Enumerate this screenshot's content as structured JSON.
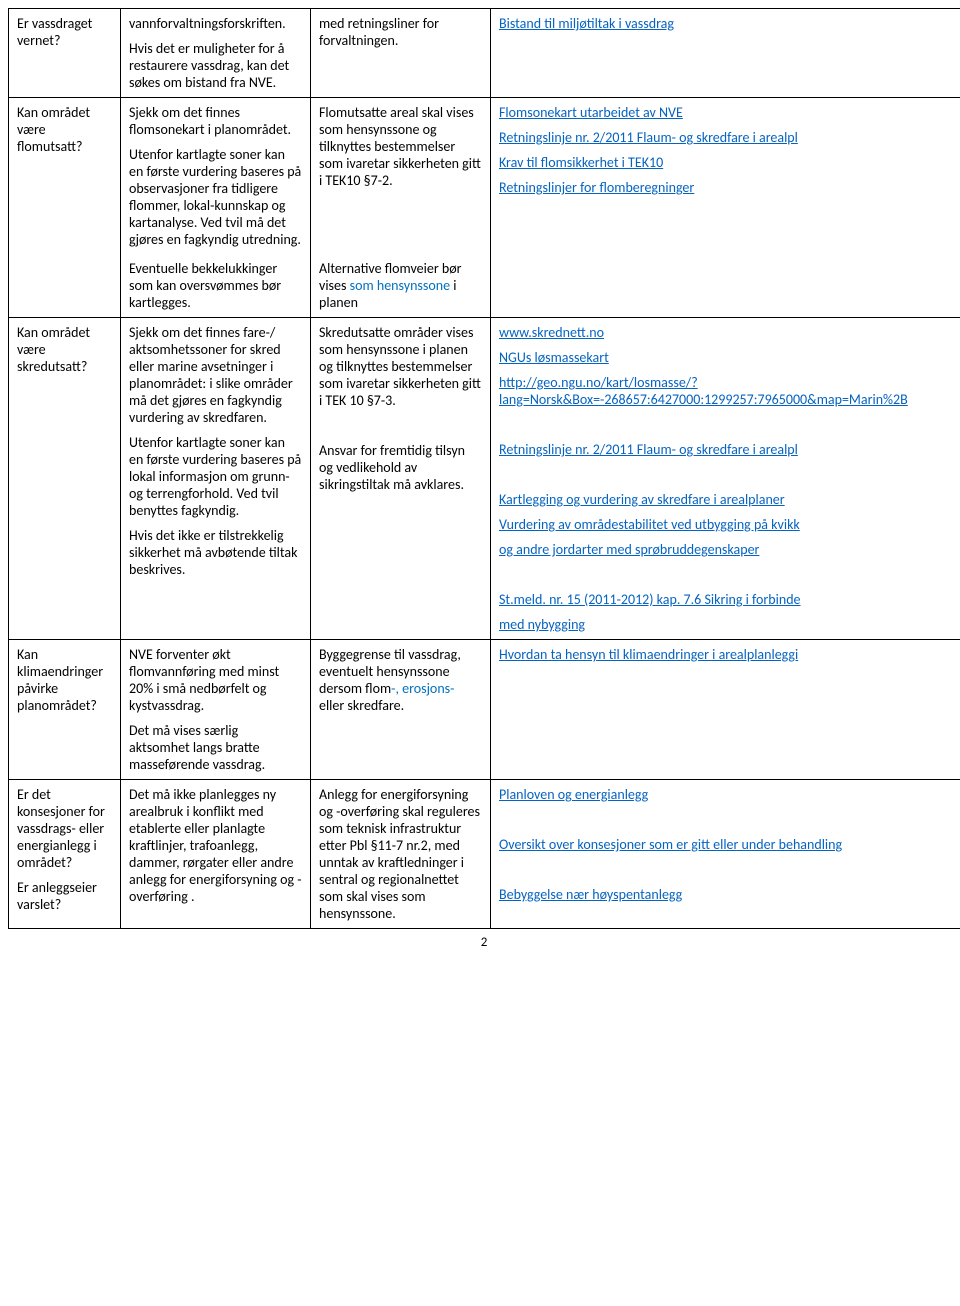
{
  "rows": [
    {
      "col1": [
        {
          "t": "Er vassdraget vernet?"
        }
      ],
      "col2": [
        {
          "t": "vannforvaltningsforskriften."
        },
        {
          "t": "Hvis det er muligheter for å  restaurere vassdrag, kan det søkes om bistand fra NVE."
        }
      ],
      "col3": [
        {
          "t": "med retningsliner for forvaltningen."
        }
      ],
      "col4": [
        {
          "link": "Bistand til miljøtiltak i vassdrag"
        }
      ]
    },
    {
      "col1": [
        {
          "t": "Kan området være flomutsatt?"
        }
      ],
      "col2": [
        {
          "t": "Sjekk om det finnes  flomsonekart i planområdet."
        },
        {
          "t": "Utenfor kartlagte soner kan  en første vurdering baseres på observasjoner fra tidligere flommer, lokal-kunnskap og kartanalyse. Ved tvil må det gjøres en fagkyndig utredning."
        }
      ],
      "col3": [
        {
          "t": "Flomutsatte areal skal vises som hensynssone og tilknyttes bestemmelser som ivaretar sikkerheten gitt i TEK10 §7-2."
        }
      ],
      "col4": [
        {
          "link": "Flomsonekart utarbeidet av NVE"
        },
        {
          "link": "Retningslinje nr. 2/2011 Flaum- og skredfare i arealpl"
        },
        {
          "link": "Krav til flomsikkerhet i TEK10"
        },
        {
          "link": "Retningslinjer for flomberegninger"
        }
      ]
    },
    {
      "col1": [],
      "col2": [
        {
          "t": "Eventuelle bekkelukkinger som kan oversvømmes bør kartlegges."
        }
      ],
      "col3": [
        {
          "html": "Alternative flomveier bør vises <span class='blue-text'>som hensynssone</span> i planen"
        }
      ],
      "col4": []
    },
    {
      "col1": [
        {
          "t": "Kan området være skredutsatt?"
        }
      ],
      "col2": [
        {
          "t": "Sjekk om det finnes fare-/ aktsomhetssoner for skred eller marine avsetninger i planområdet: i slike områder må det gjøres en fagkyndig vurdering av skredfaren."
        },
        {
          "t": "Utenfor kartlagte soner kan en første vurdering baseres på lokal informasjon om grunn- og terrengforhold. Ved tvil benyttes fagkyndig."
        },
        {
          "t": "Hvis det ikke er tilstrekkelig sikkerhet må avbøtende tiltak beskrives."
        }
      ],
      "col3": [
        {
          "t": "Skredutsatte områder vises som hensynssone i planen og tilknyttes bestemmelser som ivaretar sikkerheten gitt i TEK 10 §7-3."
        },
        {
          "t": ""
        },
        {
          "t": "Ansvar for fremtidig tilsyn og vedlikehold av sikringstiltak må avklares."
        }
      ],
      "col4": [
        {
          "link": "www.skrednett.no"
        },
        {
          "link": "NGUs løsmassekart"
        },
        {
          "link": "http://geo.ngu.no/kart/losmasse/?lang=Norsk&Box=-268657:6427000:1299257:7965000&map=Marin%2B"
        },
        {
          "t": ""
        },
        {
          "link": "Retningslinje nr. 2/2011 Flaum- og skredfare i arealpl"
        },
        {
          "t": ""
        },
        {
          "link": "Kartlegging og vurdering av skredfare i arealplaner"
        },
        {
          "link": "Vurdering av områdestabilitet ved utbygging på kvikk"
        },
        {
          "link": "og andre jordarter med sprøbruddegenskaper"
        },
        {
          "t": ""
        },
        {
          "link": "St.meld. nr. 15 (2011-2012) kap. 7.6 Sikring i forbinde"
        },
        {
          "link": "med nybygging"
        }
      ]
    },
    {
      "col1": [
        {
          "t": "Kan klimaendringer påvirke planområdet?"
        }
      ],
      "col2": [
        {
          "t": "NVE forventer økt flomvannføring med minst 20% i små nedbørfelt og kystvassdrag."
        },
        {
          "t": "Det må vises særlig aktsomhet langs bratte masseførende vassdrag."
        }
      ],
      "col3": [
        {
          "html": "Byggegrense til vassdrag, eventuelt  hensynssone dersom flom<span class='blue-text'>-, erosjons-</span> eller skredfare."
        }
      ],
      "col4": [
        {
          "link": "Hvordan ta hensyn til klimaendringer i arealplanleggi"
        }
      ]
    },
    {
      "col1": [
        {
          "t": "Er det konsesjoner for vassdrags- eller energianlegg i området?"
        },
        {
          "t": "Er anleggseier varslet?"
        }
      ],
      "col2": [
        {
          "t": "Det må ikke planlegges ny arealbruk i konflikt med etablerte eller planlagte kraftlinjer, trafoanlegg, dammer, rørgater eller andre anlegg for energiforsyning og -overføring ."
        }
      ],
      "col3": [
        {
          "t": "Anlegg for energiforsyning og -overføring skal reguleres som teknisk infrastruktur etter Pbl §11-7 nr.2, med unntak av kraftledninger i sentral og regionalnettet som skal vises som hensynssone."
        }
      ],
      "col4": [
        {
          "link": "Planloven og energianlegg"
        },
        {
          "t": ""
        },
        {
          "link": "Oversikt over konsesjoner som er gitt eller under behandling"
        },
        {
          "t": ""
        },
        {
          "link": "Bebyggelse nær høyspentanlegg"
        }
      ]
    }
  ],
  "pageNum": "2"
}
